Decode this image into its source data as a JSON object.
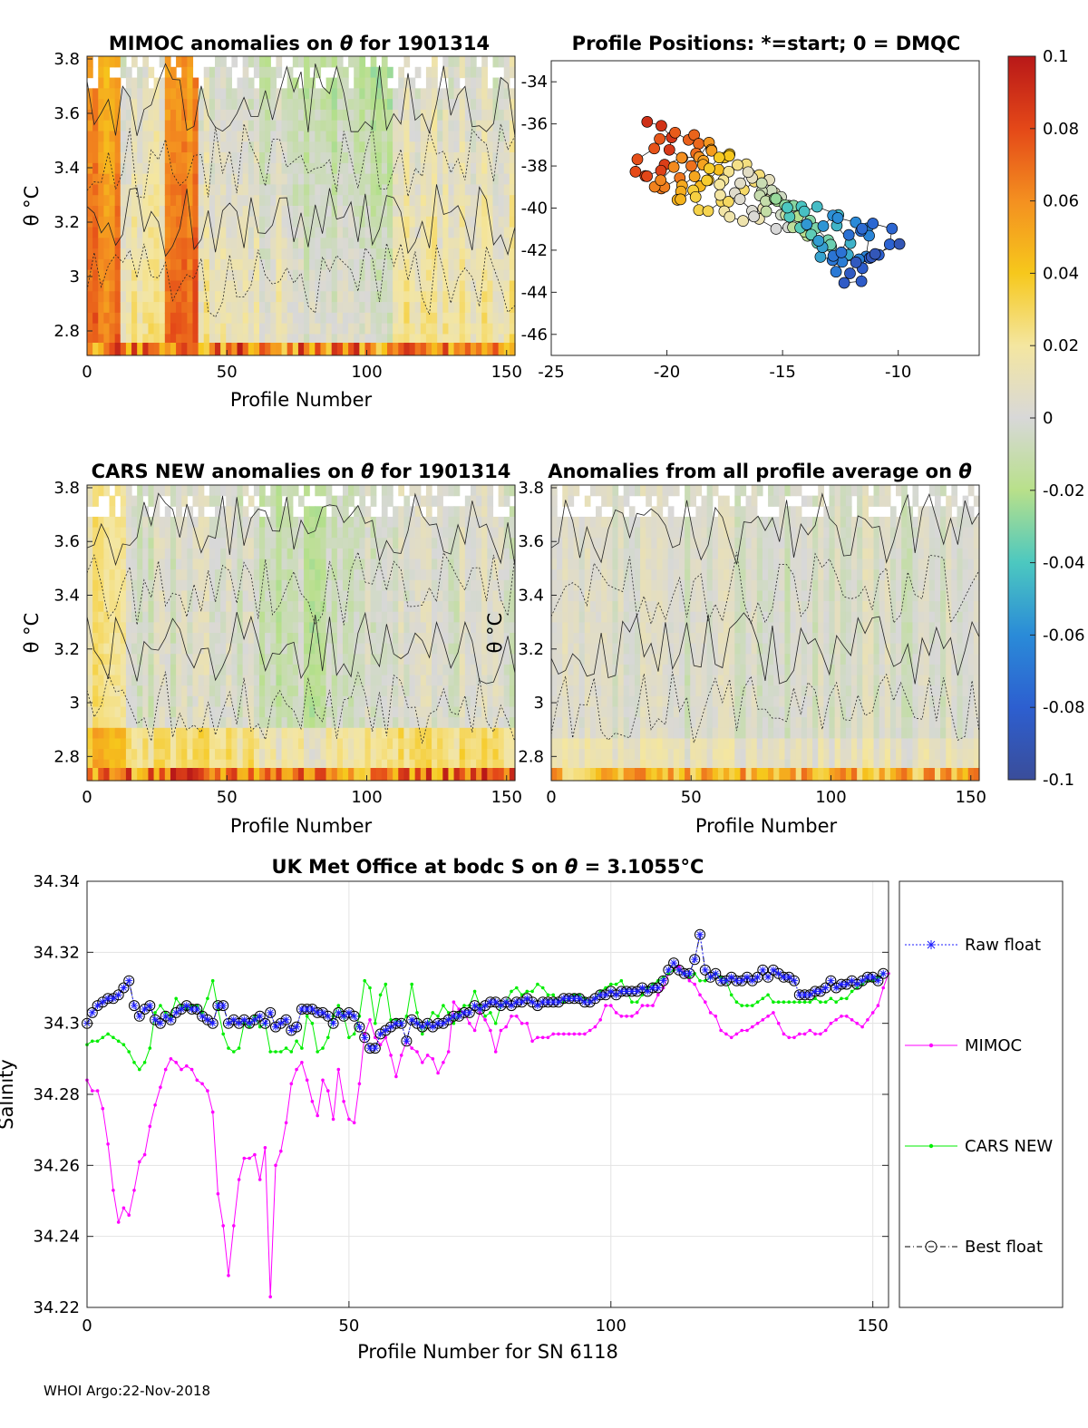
{
  "footer": "WHOI Argo:22-Nov-2018",
  "colors": {
    "raw": "#1c1cff",
    "mimoc": "#ff00ff",
    "cars": "#00ee00",
    "best": "#000000",
    "grid": "#e3e3e3"
  },
  "chart_data": [
    {
      "id": "mimoc",
      "type": "heatmap",
      "title_left": "MIMOC anomalies on ",
      "title_theta": "θ",
      "title_right": "  for 1901314",
      "xlabel": "Profile Number",
      "ylabel": "θ °C",
      "xlim": [
        0,
        153
      ],
      "ylim": [
        2.71,
        3.81
      ],
      "xticks": [
        0,
        50,
        100,
        150
      ],
      "yticks": [
        "2.8",
        "3",
        "3.2",
        "3.4",
        "3.6",
        "3.8"
      ],
      "ytick_values": [
        2.8,
        3.0,
        3.2,
        3.4,
        3.6,
        3.8
      ]
    },
    {
      "id": "positions",
      "type": "scatter",
      "title": "Profile Positions: *=start; 0 = DMQC",
      "xlim": [
        -25,
        -6.5
      ],
      "ylim": [
        -47,
        -33
      ],
      "xticks": [
        "-25",
        "-20",
        "-15",
        "-10"
      ],
      "xtick_values": [
        -25,
        -20,
        -15,
        -10
      ],
      "yticks": [
        "-34",
        "-36",
        "-38",
        "-40",
        "-42",
        "-44",
        "-46"
      ],
      "ytick_values": [
        -34,
        -36,
        -38,
        -40,
        -42,
        -44,
        -46
      ]
    },
    {
      "id": "colorbar",
      "type": "colorbar",
      "range": [
        -0.1,
        0.1
      ],
      "ticks": [
        "0.1",
        "0.08",
        "0.06",
        "0.04",
        "0.02",
        "0",
        "-0.02",
        "-0.04",
        "-0.06",
        "-0.08",
        "-0.1"
      ],
      "tick_values": [
        0.1,
        0.08,
        0.06,
        0.04,
        0.02,
        0,
        -0.02,
        -0.04,
        -0.06,
        -0.08,
        -0.1
      ]
    },
    {
      "id": "cars",
      "type": "heatmap",
      "title_left": "CARS NEW anomalies on ",
      "title_theta": "θ",
      "title_right": " for 1901314",
      "xlabel": "Profile Number",
      "ylabel": "θ °C",
      "xlim": [
        0,
        153
      ],
      "ylim": [
        2.71,
        3.81
      ],
      "xticks": [
        0,
        50,
        100,
        150
      ],
      "yticks": [
        "2.8",
        "3",
        "3.2",
        "3.4",
        "3.6",
        "3.8"
      ],
      "ytick_values": [
        2.8,
        3.0,
        3.2,
        3.4,
        3.6,
        3.8
      ]
    },
    {
      "id": "allavg",
      "type": "heatmap",
      "title_left": "Anomalies from all profile average on ",
      "title_theta": "θ",
      "title_right": "",
      "xlabel": "Profile Number",
      "ylabel": "θ °C",
      "xlim": [
        0,
        153
      ],
      "ylim": [
        2.71,
        3.81
      ],
      "xticks": [
        0,
        50,
        100,
        150
      ],
      "yticks": [
        "2.8",
        "3",
        "3.2",
        "3.4",
        "3.6",
        "3.8"
      ],
      "ytick_values": [
        2.8,
        3.0,
        3.2,
        3.4,
        3.6,
        3.8
      ]
    },
    {
      "id": "salinity",
      "type": "line",
      "title_left": "UK Met Office at bodc S on ",
      "title_theta": "θ",
      "title_right": " = 3.1055°C",
      "xlabel": "Profile Number for SN 6118",
      "ylabel": "Salinity",
      "xlim": [
        0,
        153
      ],
      "ylim": [
        34.22,
        34.34
      ],
      "xticks": [
        0,
        50,
        100,
        150
      ],
      "yticks": [
        "34.22",
        "34.24",
        "34.26",
        "34.28",
        "34.3",
        "34.32",
        "34.34"
      ],
      "ytick_values": [
        34.22,
        34.24,
        34.26,
        34.28,
        34.3,
        34.32,
        34.34
      ],
      "legend": [
        "Raw float",
        "MIMOC",
        "CARS NEW",
        "Best float"
      ],
      "series": [
        {
          "name": "Raw float",
          "values": [
            34.3,
            34.303,
            34.305,
            34.306,
            34.307,
            34.307,
            34.308,
            34.31,
            34.312,
            34.305,
            34.302,
            34.304,
            34.305,
            34.301,
            34.3,
            34.302,
            34.301,
            34.303,
            34.304,
            34.305,
            34.304,
            34.304,
            34.302,
            34.301,
            34.3,
            34.305,
            34.305,
            34.3,
            34.301,
            34.3,
            34.301,
            34.3,
            34.301,
            34.302,
            34.3,
            34.303,
            34.299,
            34.3,
            34.301,
            34.298,
            34.299,
            34.304,
            34.304,
            34.304,
            34.303,
            34.303,
            34.302,
            34.3,
            34.303,
            34.302,
            34.303,
            34.302,
            34.299,
            34.296,
            34.293,
            34.293,
            34.297,
            34.298,
            34.299,
            34.3,
            34.3,
            34.295,
            34.301,
            34.3,
            34.299,
            34.3,
            34.299,
            34.3,
            34.3,
            34.301,
            34.302,
            34.302,
            34.303,
            34.303,
            34.305,
            34.304,
            34.305,
            34.306,
            34.306,
            34.305,
            34.306,
            34.305,
            34.306,
            34.306,
            34.307,
            34.306,
            34.305,
            34.306,
            34.306,
            34.306,
            34.306,
            34.307,
            34.307,
            34.307,
            34.307,
            34.306,
            34.306,
            34.307,
            34.308,
            34.308,
            34.309,
            34.308,
            34.309,
            34.309,
            34.309,
            34.309,
            34.31,
            34.309,
            34.31,
            34.31,
            34.312,
            34.315,
            34.317,
            34.315,
            34.314,
            34.314,
            34.318,
            34.325,
            34.315,
            34.313,
            34.314,
            34.312,
            34.312,
            34.313,
            34.312,
            34.312,
            34.313,
            34.312,
            34.313,
            34.315,
            34.313,
            34.315,
            34.314,
            34.313,
            34.313,
            34.312,
            34.308,
            34.308,
            34.308,
            34.309,
            34.309,
            34.31,
            34.312,
            34.31,
            34.311,
            34.311,
            34.312,
            34.311,
            34.312,
            34.313,
            34.313,
            34.312,
            34.314
          ]
        },
        {
          "name": "MIMOC",
          "values": [
            34.284,
            34.281,
            34.281,
            34.276,
            34.266,
            34.253,
            34.244,
            34.248,
            34.246,
            34.253,
            34.261,
            34.263,
            34.271,
            34.277,
            34.282,
            34.287,
            34.29,
            34.289,
            34.287,
            34.288,
            34.287,
            34.284,
            34.283,
            34.281,
            34.275,
            34.252,
            34.243,
            34.229,
            34.243,
            34.256,
            34.262,
            34.262,
            34.263,
            34.256,
            34.265,
            34.223,
            34.26,
            34.264,
            34.272,
            34.283,
            34.287,
            34.289,
            34.284,
            34.278,
            34.274,
            34.284,
            34.281,
            34.273,
            34.287,
            34.278,
            34.273,
            34.272,
            34.283,
            34.297,
            34.301,
            34.296,
            34.294,
            34.296,
            34.291,
            34.285,
            34.291,
            34.295,
            34.293,
            34.292,
            34.289,
            34.291,
            34.29,
            34.286,
            34.289,
            34.292,
            34.306,
            34.304,
            34.303,
            34.3,
            34.298,
            34.303,
            34.301,
            34.298,
            34.292,
            34.298,
            34.299,
            34.302,
            34.302,
            34.3,
            34.3,
            34.295,
            34.296,
            34.296,
            34.296,
            34.297,
            34.297,
            34.297,
            34.297,
            34.297,
            34.297,
            34.297,
            34.298,
            34.299,
            34.301,
            34.305,
            34.305,
            34.303,
            34.302,
            34.302,
            34.302,
            34.303,
            34.305,
            34.305,
            34.305,
            34.308,
            34.31,
            34.314,
            34.315,
            34.316,
            34.314,
            34.312,
            34.311,
            34.308,
            34.306,
            34.303,
            34.302,
            34.298,
            34.297,
            34.296,
            34.297,
            34.298,
            34.298,
            34.299,
            34.3,
            34.301,
            34.302,
            34.303,
            34.3,
            34.297,
            34.296,
            34.296,
            34.297,
            34.297,
            34.298,
            34.297,
            34.297,
            34.298,
            34.3,
            34.301,
            34.302,
            34.302,
            34.301,
            34.3,
            34.299,
            34.301,
            34.303,
            34.305,
            34.31,
            34.314
          ]
        },
        {
          "name": "CARS NEW",
          "values": [
            34.294,
            34.295,
            34.295,
            34.296,
            34.297,
            34.296,
            34.295,
            34.294,
            34.292,
            34.289,
            34.287,
            34.289,
            34.293,
            34.303,
            34.305,
            34.303,
            34.302,
            34.307,
            34.305,
            34.304,
            34.305,
            34.305,
            34.303,
            34.307,
            34.312,
            34.304,
            34.297,
            34.293,
            34.292,
            34.293,
            34.3,
            34.299,
            34.302,
            34.299,
            34.3,
            34.292,
            34.292,
            34.292,
            34.293,
            34.292,
            34.295,
            34.293,
            34.302,
            34.3,
            34.292,
            34.293,
            34.296,
            34.302,
            34.305,
            34.302,
            34.296,
            34.297,
            34.302,
            34.312,
            34.31,
            34.3,
            34.308,
            34.311,
            34.301,
            34.301,
            34.3,
            34.302,
            34.311,
            34.303,
            34.297,
            34.3,
            34.303,
            34.302,
            34.305,
            34.303,
            34.3,
            34.303,
            34.305,
            34.305,
            34.309,
            34.305,
            34.302,
            34.303,
            34.3,
            34.305,
            34.306,
            34.309,
            34.31,
            34.308,
            34.309,
            34.309,
            34.311,
            34.31,
            34.308,
            34.308,
            34.306,
            34.306,
            34.307,
            34.308,
            34.308,
            34.307,
            34.306,
            34.307,
            34.309,
            34.31,
            34.311,
            34.311,
            34.312,
            34.309,
            34.306,
            34.306,
            34.308,
            34.31,
            34.311,
            34.312,
            34.313,
            34.314,
            34.315,
            34.315,
            34.314,
            34.313,
            34.314,
            34.312,
            34.312,
            34.313,
            34.314,
            34.313,
            34.312,
            34.308,
            34.306,
            34.305,
            34.305,
            34.305,
            34.306,
            34.307,
            34.308,
            34.306,
            34.306,
            34.306,
            34.306,
            34.306,
            34.306,
            34.306,
            34.306,
            34.307,
            34.306,
            34.306,
            34.307,
            34.306,
            34.307,
            34.307,
            34.309,
            34.31,
            34.311,
            34.312,
            34.312,
            34.313,
            34.314
          ]
        },
        {
          "name": "Best float",
          "values": [
            34.3,
            34.303,
            34.305,
            34.306,
            34.307,
            34.307,
            34.308,
            34.31,
            34.312,
            34.305,
            34.302,
            34.304,
            34.305,
            34.301,
            34.3,
            34.302,
            34.301,
            34.303,
            34.304,
            34.305,
            34.304,
            34.304,
            34.302,
            34.301,
            34.3,
            34.305,
            34.305,
            34.3,
            34.301,
            34.3,
            34.301,
            34.3,
            34.301,
            34.302,
            34.3,
            34.303,
            34.299,
            34.3,
            34.301,
            34.298,
            34.299,
            34.304,
            34.304,
            34.304,
            34.303,
            34.303,
            34.302,
            34.3,
            34.303,
            34.302,
            34.303,
            34.302,
            34.299,
            34.296,
            34.293,
            34.293,
            34.297,
            34.298,
            34.299,
            34.3,
            34.3,
            34.295,
            34.301,
            34.3,
            34.299,
            34.3,
            34.299,
            34.3,
            34.3,
            34.301,
            34.302,
            34.302,
            34.303,
            34.303,
            34.305,
            34.304,
            34.305,
            34.306,
            34.306,
            34.305,
            34.306,
            34.305,
            34.306,
            34.306,
            34.307,
            34.306,
            34.305,
            34.306,
            34.306,
            34.306,
            34.306,
            34.307,
            34.307,
            34.307,
            34.307,
            34.306,
            34.306,
            34.307,
            34.308,
            34.308,
            34.309,
            34.308,
            34.309,
            34.309,
            34.309,
            34.309,
            34.31,
            34.309,
            34.31,
            34.31,
            34.312,
            34.315,
            34.317,
            34.315,
            34.314,
            34.314,
            34.318,
            34.325,
            34.315,
            34.313,
            34.314,
            34.312,
            34.312,
            34.313,
            34.312,
            34.312,
            34.313,
            34.312,
            34.313,
            34.315,
            34.313,
            34.315,
            34.314,
            34.313,
            34.313,
            34.312,
            34.308,
            34.308,
            34.308,
            34.309,
            34.309,
            34.31,
            34.312,
            34.31,
            34.311,
            34.311,
            34.312,
            34.311,
            34.312,
            34.313,
            34.313,
            34.312,
            34.314
          ]
        }
      ]
    }
  ]
}
